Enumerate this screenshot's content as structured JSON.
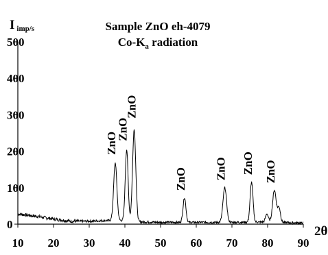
{
  "chart_data": {
    "type": "line",
    "title": "Sample ZnO  eh-4079",
    "subtitle_main": "Co-K",
    "subtitle_sub": "a",
    "subtitle_tail": " radiation",
    "ylabel_main": "I",
    "ylabel_sub": "imp/s",
    "xlabel": "2θ",
    "xlim": [
      10,
      90
    ],
    "ylim": [
      0,
      500
    ],
    "xticks": [
      10,
      20,
      30,
      40,
      50,
      60,
      70,
      80,
      90
    ],
    "yticks": [
      0,
      100,
      200,
      300,
      400,
      500
    ],
    "grid": false,
    "series": [
      {
        "color": "#000000",
        "peaks": [
          {
            "x": 37.3,
            "y": 158,
            "w": 0.45
          },
          {
            "x": 40.5,
            "y": 195,
            "w": 0.4
          },
          {
            "x": 42.6,
            "y": 252,
            "w": 0.45
          },
          {
            "x": 56.7,
            "y": 68,
            "w": 0.4
          },
          {
            "x": 68.0,
            "y": 95,
            "w": 0.5
          },
          {
            "x": 75.5,
            "y": 110,
            "w": 0.4
          },
          {
            "x": 79.8,
            "y": 22,
            "w": 0.4
          },
          {
            "x": 81.9,
            "y": 88,
            "w": 0.5
          },
          {
            "x": 83.2,
            "y": 40,
            "w": 0.4
          }
        ],
        "baseline": [
          [
            10,
            28
          ],
          [
            15,
            22
          ],
          [
            20,
            14
          ],
          [
            25,
            8
          ],
          [
            30,
            8
          ],
          [
            35,
            10
          ],
          [
            40,
            10
          ],
          [
            45,
            6
          ],
          [
            50,
            5
          ],
          [
            60,
            5
          ],
          [
            70,
            5
          ],
          [
            80,
            6
          ],
          [
            90,
            3
          ]
        ]
      }
    ],
    "annotations": [
      {
        "text": "ZnO",
        "x": 37.3,
        "y": 190
      },
      {
        "text": "ZnO",
        "x": 40.5,
        "y": 228
      },
      {
        "text": "ZnO",
        "x": 43.0,
        "y": 290
      },
      {
        "text": "ZnO",
        "x": 56.7,
        "y": 92
      },
      {
        "text": "ZnO",
        "x": 68.0,
        "y": 120
      },
      {
        "text": "ZnO",
        "x": 75.6,
        "y": 135
      },
      {
        "text": "ZnO",
        "x": 81.9,
        "y": 112
      }
    ]
  }
}
